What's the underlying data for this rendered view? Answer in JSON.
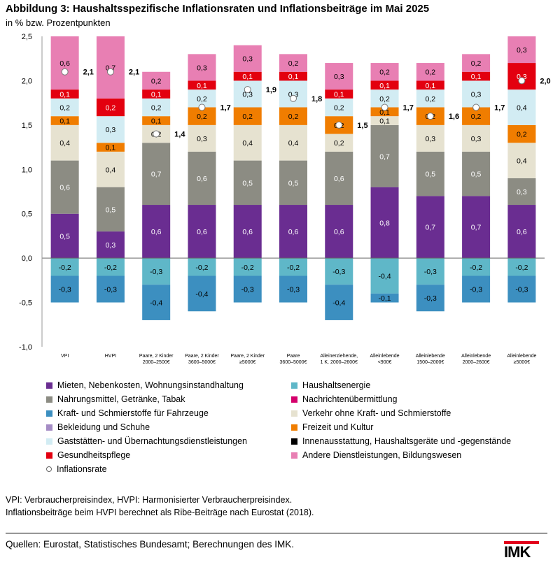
{
  "title": "Abbildung 3: Haushaltsspezifische Inflationsraten und Inflationsbeiträge im Mai 2025",
  "subtitle": "in % bzw. Prozentpunkten",
  "chart_data": {
    "type": "stacked-bar",
    "ylim": [
      -1.0,
      2.5
    ],
    "yticks": [
      "2,5",
      "2,0",
      "1,5",
      "1,0",
      "0,5",
      "0,0",
      "-0,5",
      "-1,0"
    ],
    "ytick_values": [
      2.5,
      2.0,
      1.5,
      1.0,
      0.5,
      0.0,
      -0.5,
      -1.0
    ],
    "grid": false,
    "legend_position": "bottom",
    "categories": [
      [
        "VPI"
      ],
      [
        "HVPI"
      ],
      [
        "Paare, 2 Kinder",
        "2000–2500€"
      ],
      [
        "Paare, 2 Kinder",
        "3600–5000€"
      ],
      [
        "Paare, 2 Kinder",
        "≥5000€"
      ],
      [
        "Paare",
        "3600–5000€"
      ],
      [
        "Alleinerziehende,",
        "1 K. 2000–2600€"
      ],
      [
        "Alleinlebende",
        "<900€"
      ],
      [
        "Alleinlebende",
        "1500–2000€"
      ],
      [
        "Alleinlebende",
        "2000–2600€"
      ],
      [
        "Alleinlebende",
        "≥5000€"
      ]
    ],
    "series": [
      {
        "name": "Mieten, Nebenkosten, Wohnungsinstandhaltung",
        "color": "#6a2d91",
        "text_color": "#ffffff",
        "values": [
          0.5,
          0.3,
          0.6,
          0.6,
          0.6,
          0.6,
          0.6,
          0.8,
          0.7,
          0.7,
          0.6
        ]
      },
      {
        "name": "Nahrungsmittel, Getränke, Tabak",
        "color": "#8c8c83",
        "text_color": "#ffffff",
        "values": [
          0.6,
          0.5,
          0.7,
          0.6,
          0.5,
          0.5,
          0.6,
          0.7,
          0.5,
          0.5,
          0.3
        ]
      },
      {
        "name": "Verkehr ohne Kraft- und Schmierstoffe",
        "color": "#e6e2d0",
        "text_color": "#000000",
        "values": [
          0.4,
          0.4,
          0.2,
          0.3,
          0.4,
          0.4,
          0.2,
          0.1,
          0.3,
          0.3,
          0.4
        ]
      },
      {
        "name": "Freizeit und Kultur",
        "color": "#f07d00",
        "text_color": "#000000",
        "values": [
          0.1,
          0.1,
          0.1,
          0.2,
          0.2,
          0.2,
          0.2,
          0.1,
          0.2,
          0.2,
          0.2
        ]
      },
      {
        "name": "Gaststätten- und Übernachtungsdienstleistungen",
        "color": "#d2ecf3",
        "text_color": "#000000",
        "values": [
          0.2,
          0.3,
          0.2,
          0.2,
          0.3,
          0.3,
          0.2,
          0.2,
          0.2,
          0.3,
          0.4
        ]
      },
      {
        "name": "Gesundheitspflege",
        "color": "#e3000f",
        "text_color": "#ffffff",
        "values": [
          0.1,
          0.2,
          0.1,
          0.1,
          0.1,
          0.1,
          0.1,
          0.1,
          0.1,
          0.1,
          0.3
        ]
      },
      {
        "name": "Andere Dienstleistungen, Bildungswesen",
        "color": "#e87fb3",
        "text_color": "#000000",
        "values": [
          0.6,
          0.7,
          0.2,
          0.3,
          0.3,
          0.2,
          0.3,
          0.2,
          0.2,
          0.2,
          0.3
        ]
      },
      {
        "name": "Haushaltsenergie",
        "color": "#5fb7c8",
        "text_color": "#000000",
        "values": [
          -0.2,
          -0.2,
          -0.3,
          -0.2,
          -0.2,
          -0.2,
          -0.3,
          -0.4,
          -0.3,
          -0.2,
          -0.2
        ]
      },
      {
        "name": "Kraft- und Schmierstoffe für Fahrzeuge",
        "color": "#3c8fc0",
        "text_color": "#000000",
        "values": [
          -0.3,
          -0.3,
          -0.4,
          -0.4,
          -0.3,
          -0.3,
          -0.4,
          -0.1,
          -0.3,
          -0.3,
          -0.3
        ]
      }
    ],
    "inflation_rate": {
      "name": "Inflationsrate",
      "values": [
        2.1,
        2.1,
        1.4,
        1.7,
        1.9,
        1.8,
        1.5,
        1.7,
        1.6,
        1.7,
        2.0
      ],
      "labels": [
        "2,1",
        "2,1",
        "1,4",
        "1,7",
        "1,9",
        "1,8",
        "1,5",
        "1,7",
        "1,6",
        "1,7",
        "2,0"
      ]
    },
    "legend": [
      {
        "name": "Mieten, Nebenkosten, Wohnungsinstandhaltung",
        "color": "#6a2d91"
      },
      {
        "name": "Haushaltsenergie",
        "color": "#5fb7c8"
      },
      {
        "name": "Nahrungsmittel, Getränke, Tabak",
        "color": "#8c8c83"
      },
      {
        "name": "Nachrichtenübermittlung",
        "color": "#d4006b"
      },
      {
        "name": "Kraft- und Schmierstoffe für Fahrzeuge",
        "color": "#3c8fc0"
      },
      {
        "name": "Verkehr ohne Kraft- und Schmierstoffe",
        "color": "#e6e2d0"
      },
      {
        "name": "Bekleidung und Schuhe",
        "color": "#a58cc5"
      },
      {
        "name": "Freizeit und Kultur",
        "color": "#f07d00"
      },
      {
        "name": "Gaststätten- und Übernachtungsdienstleistungen",
        "color": "#d2ecf3"
      },
      {
        "name": "Innenausstattung, Haushaltsgeräte und -gegenstände",
        "color": "#000000"
      },
      {
        "name": "Gesundheitspflege",
        "color": "#e3000f"
      },
      {
        "name": "Andere Dienstleistungen, Bildungswesen",
        "color": "#e87fb3"
      },
      {
        "name": "Inflationsrate",
        "color": "",
        "marker": "circle"
      }
    ]
  },
  "note1": "VPI: Verbraucherpreisindex, HVPI: Harmonisierter Verbraucherpreisindex.",
  "note2": "Inflationsbeiträge beim HVPI berechnet als Ribe-Beiträge nach Eurostat (2018).",
  "source": "Quellen: Eurostat, Statistisches Bundesamt; Berechnungen des IMK.",
  "logo": "IMK",
  "colors": {
    "logo_accent": "#e2001a"
  }
}
